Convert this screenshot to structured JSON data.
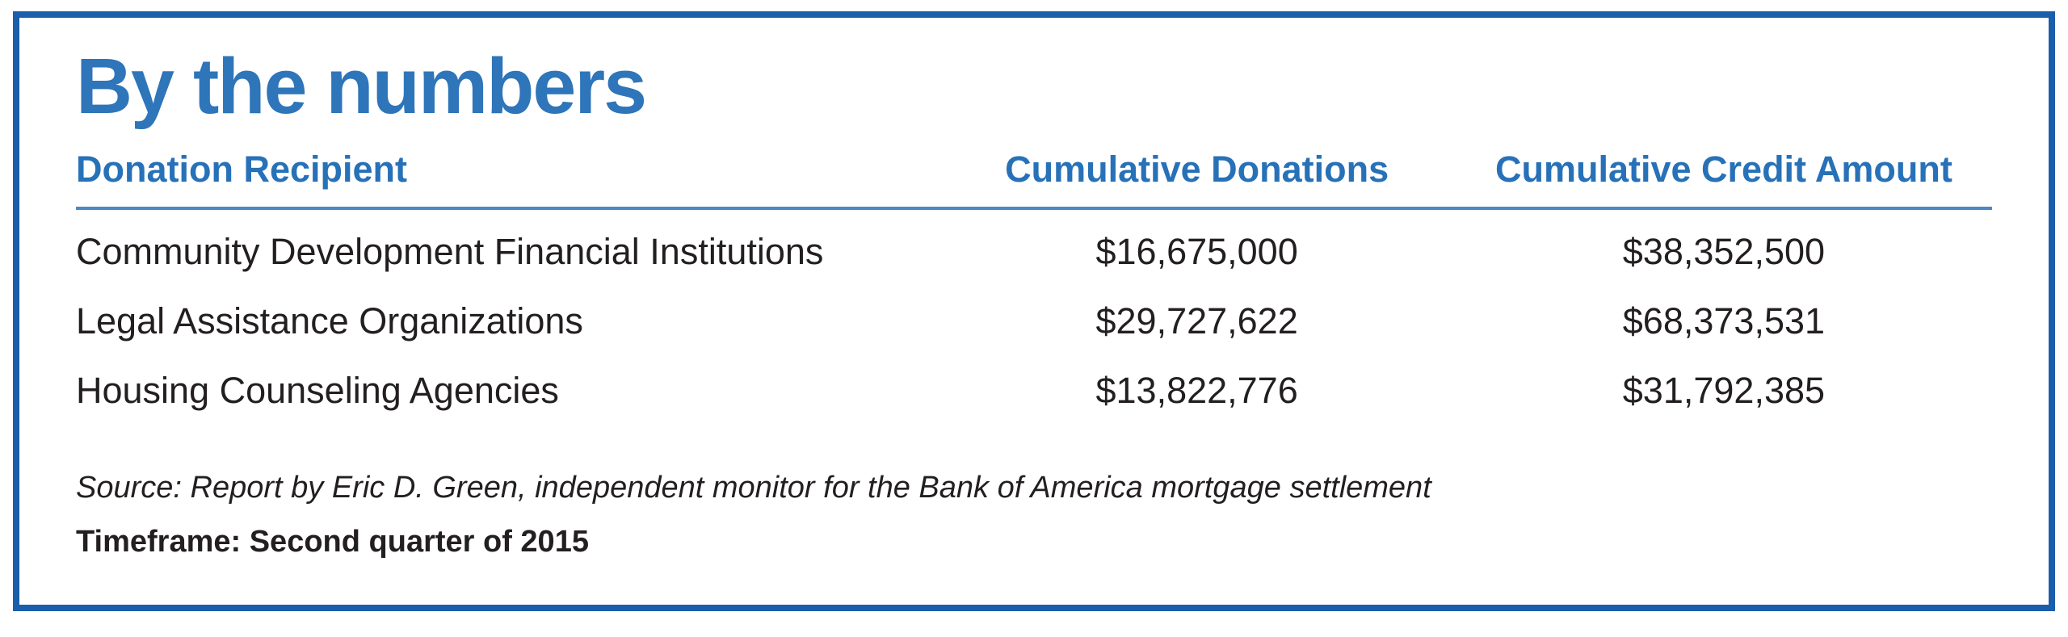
{
  "figure": {
    "title": "By the numbers",
    "table": {
      "headers": {
        "recipient": "Donation Recipient",
        "donations": "Cumulative Donations",
        "credit": "Cumulative Credit Amount"
      },
      "rows": [
        {
          "recipient": "Community Development Financial Institutions",
          "donations": "$16,675,000",
          "credit": "$38,352,500"
        },
        {
          "recipient": "Legal Assistance Organizations",
          "donations": "$29,727,622",
          "credit": "$68,373,531"
        },
        {
          "recipient": "Housing Counseling Agencies",
          "donations": "$13,822,776",
          "credit": "$31,792,385"
        }
      ]
    },
    "source": "Source: Report by Eric D. Green, independent monitor for the Bank of America mortgage settlement",
    "timeframe": "Timeframe: Second quarter of 2015",
    "colors": {
      "accent_blue": "#2e75b9",
      "frame_blue": "#1b5eab",
      "rule_blue": "#4d88c5",
      "text": "#231f20"
    }
  },
  "chart_data": {
    "type": "table",
    "title": "By the numbers",
    "columns": [
      "Donation Recipient",
      "Cumulative Donations",
      "Cumulative Credit Amount"
    ],
    "rows": [
      [
        "Community Development Financial Institutions",
        "$16,675,000",
        "$38,352,500"
      ],
      [
        "Legal Assistance Organizations",
        "$29,727,622",
        "$68,373,531"
      ],
      [
        "Housing Counseling Agencies",
        "$13,822,776",
        "$31,792,385"
      ]
    ],
    "values": {
      "cumulative_donations": [
        16675000,
        29727622,
        13822776
      ],
      "cumulative_credit_amount": [
        38352500,
        68373531,
        31792385
      ]
    },
    "source": "Source: Report by Eric D. Green, independent monitor for the Bank of America mortgage settlement",
    "timeframe": "Second quarter of 2015",
    "layout": {
      "grid": "header-underline-only",
      "legend": "none"
    }
  }
}
